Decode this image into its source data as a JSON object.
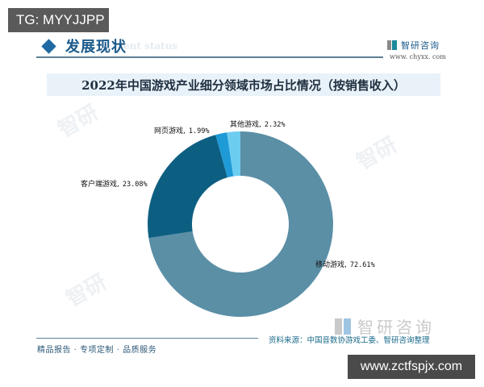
{
  "overlay": {
    "top_badge": "TG: MYYJJPP",
    "bottom_badge": "www.zctfspjx.com"
  },
  "header": {
    "section_title": "发展现状",
    "section_subtitle": "ent status",
    "brand_name": "智研咨询",
    "brand_url": "www. chyxx. com"
  },
  "footer": {
    "slogan": "精品报告 · 专项定制 · 品质服务",
    "brand_name": "智研咨询",
    "source": "资料来源：中国音数协游戏工委、智研咨询整理"
  },
  "colors": {
    "mobile": "#5b8fa6",
    "client": "#0d5f82",
    "web": "#1e9ad6",
    "other": "#6dcdf0"
  },
  "labels": {
    "mobile": {
      "name": "移动游戏,",
      "value": "72.61%"
    },
    "client": {
      "name": "客户端游戏,",
      "value": "23.08%"
    },
    "web": {
      "name": "网页游戏,",
      "value": "1.99%"
    },
    "other": {
      "name": "其他游戏,",
      "value": "2.32%"
    }
  },
  "chart_data": {
    "type": "pie",
    "subtype": "donut",
    "title": "2022年中国游戏产业细分领域市场占比情况（按销售收入）",
    "categories": [
      "移动游戏",
      "客户端游戏",
      "网页游戏",
      "其他游戏"
    ],
    "values": [
      72.61,
      23.08,
      1.99,
      2.32
    ],
    "unit": "%",
    "start_angle": "12 o'clock, clockwise starting with 移动游戏",
    "legend": "none (direct labels)",
    "source": "资料来源：中国音数协游戏工委、智研咨询整理"
  }
}
